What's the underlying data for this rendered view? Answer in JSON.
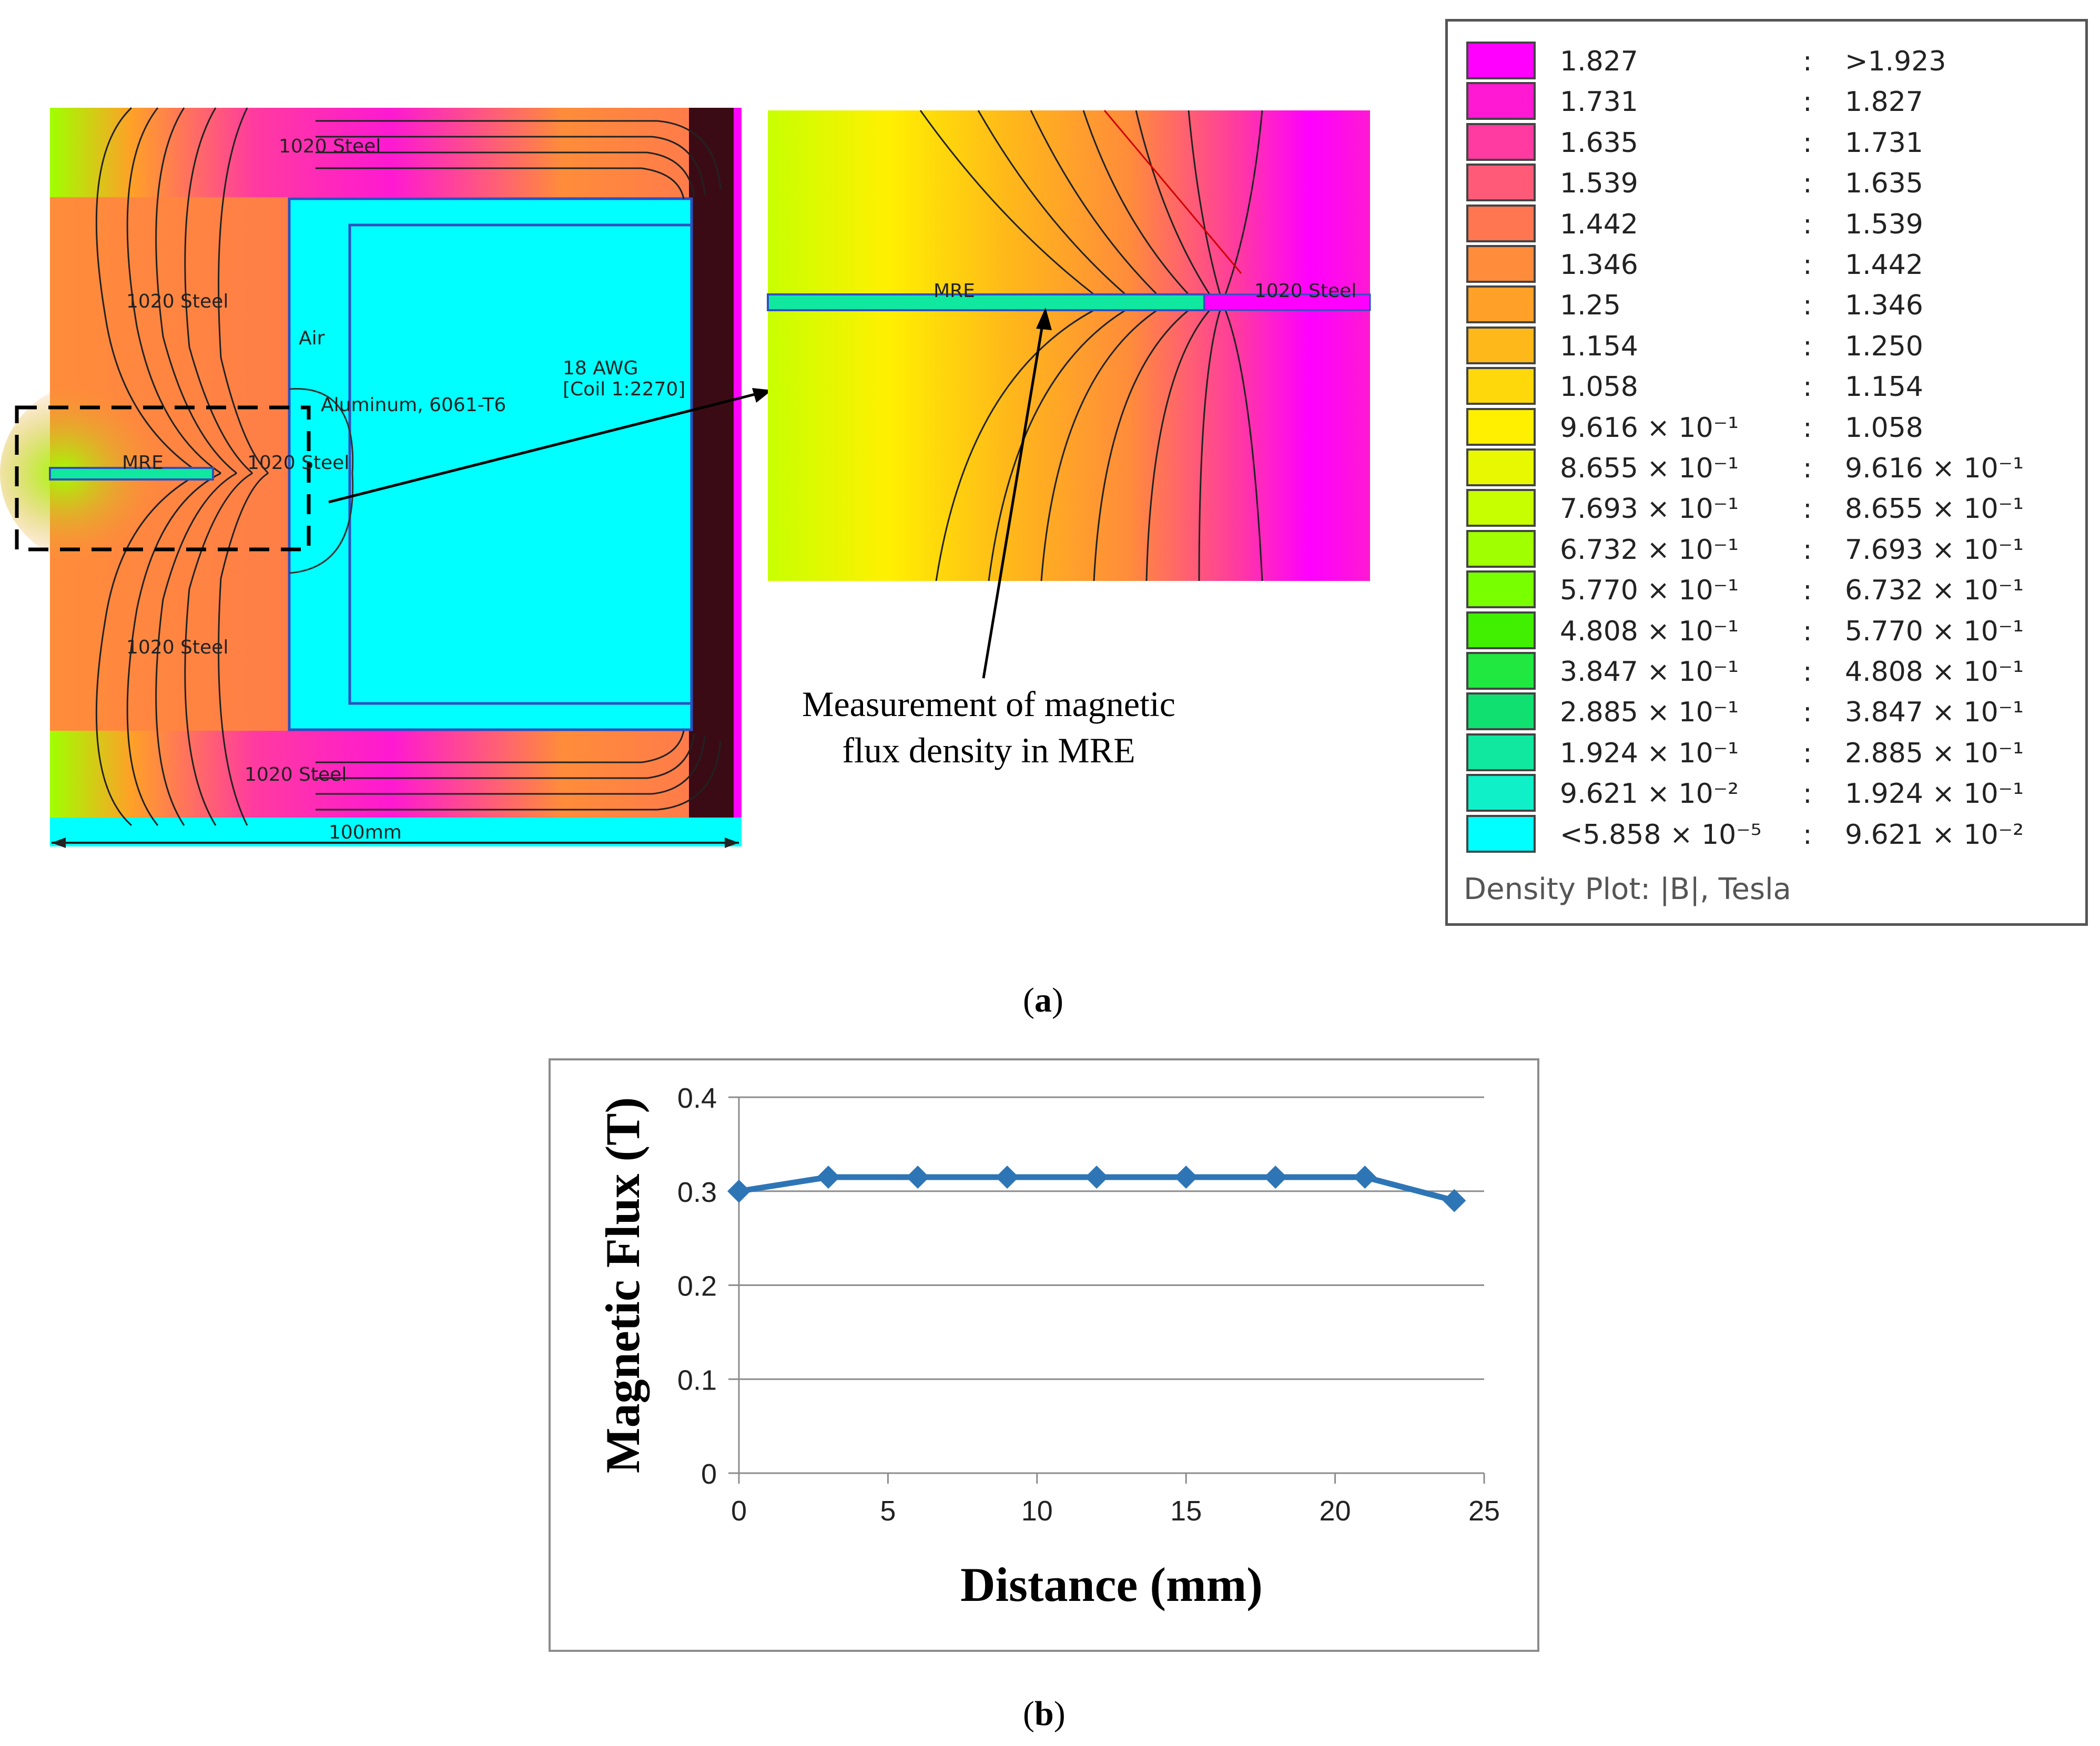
{
  "panel_a": {
    "label": "a",
    "fem_labels": {
      "steel_top": "1020 Steel",
      "steel_upper": "1020 Steel",
      "air": "Air",
      "aluminum": "Aluminum, 6061-T6",
      "coil_awg": "18 AWG",
      "coil_turns": "[Coil 1:2270]",
      "mre": "MRE",
      "steel_mid": "1020 Steel",
      "steel_lower": "1020 Steel",
      "steel_bottom": "1020 Steel",
      "dimension": "100mm",
      "zoom_mre": "MRE",
      "zoom_steel": "1020 Steel"
    },
    "annotation_line1": "Measurement of magnetic",
    "annotation_line2": "flux density in MRE",
    "legend": {
      "title": "Density Plot: |B|, Tesla",
      "rows": [
        {
          "lo": "1.827",
          "hi": ">1.923",
          "color": "#ff00ff"
        },
        {
          "lo": "1.731",
          "hi": "1.827",
          "color": "#ff19d2"
        },
        {
          "lo": "1.635",
          "hi": "1.731",
          "color": "#ff3aa0"
        },
        {
          "lo": "1.539",
          "hi": "1.635",
          "color": "#ff5a78"
        },
        {
          "lo": "1.442",
          "hi": "1.539",
          "color": "#ff7650"
        },
        {
          "lo": "1.346",
          "hi": "1.442",
          "color": "#ff8c3a"
        },
        {
          "lo": "1.25",
          "hi": "1.346",
          "color": "#ffa028"
        },
        {
          "lo": "1.154",
          "hi": "1.250",
          "color": "#ffb81a"
        },
        {
          "lo": "1.058",
          "hi": "1.154",
          "color": "#ffd80c"
        },
        {
          "lo": "9.616 × 10⁻¹",
          "hi": "1.058",
          "color": "#fff000"
        },
        {
          "lo": "8.655 × 10⁻¹",
          "hi": "9.616 × 10⁻¹",
          "color": "#e8f800"
        },
        {
          "lo": "7.693 × 10⁻¹",
          "hi": "8.655 × 10⁻¹",
          "color": "#c8ff00"
        },
        {
          "lo": "6.732 × 10⁻¹",
          "hi": "7.693 × 10⁻¹",
          "color": "#a0ff00"
        },
        {
          "lo": "5.770 × 10⁻¹",
          "hi": "6.732 × 10⁻¹",
          "color": "#78ff00"
        },
        {
          "lo": "4.808 × 10⁻¹",
          "hi": "5.770 × 10⁻¹",
          "color": "#40f000"
        },
        {
          "lo": "3.847 × 10⁻¹",
          "hi": "4.808 × 10⁻¹",
          "color": "#20e840"
        },
        {
          "lo": "2.885 × 10⁻¹",
          "hi": "3.847 × 10⁻¹",
          "color": "#10e070"
        },
        {
          "lo": "1.924 × 10⁻¹",
          "hi": "2.885 × 10⁻¹",
          "color": "#10e8a0"
        },
        {
          "lo": "9.621 × 10⁻²",
          "hi": "1.924 × 10⁻¹",
          "color": "#10f0c8"
        },
        {
          "lo": "<5.858 × 10⁻⁵",
          "hi": "9.621 × 10⁻²",
          "color": "#00ffff"
        }
      ]
    }
  },
  "panel_b": {
    "label": "b"
  },
  "chart_data": {
    "type": "line",
    "title": "",
    "xlabel": "Distance (mm)",
    "ylabel": "Magnetic Flux (T)",
    "xlim": [
      0,
      25
    ],
    "ylim": [
      0,
      0.4
    ],
    "x_ticks": [
      "0",
      "5",
      "10",
      "15",
      "20",
      "25"
    ],
    "y_ticks": [
      "0",
      "0.1",
      "0.2",
      "0.3",
      "0.4"
    ],
    "grid": true,
    "series": [
      {
        "name": "Magnetic Flux",
        "color": "#2e75b6",
        "x": [
          0,
          3,
          6,
          9,
          12,
          15,
          18,
          21,
          24
        ],
        "y": [
          0.3,
          0.315,
          0.315,
          0.315,
          0.315,
          0.315,
          0.315,
          0.315,
          0.29
        ]
      }
    ]
  }
}
